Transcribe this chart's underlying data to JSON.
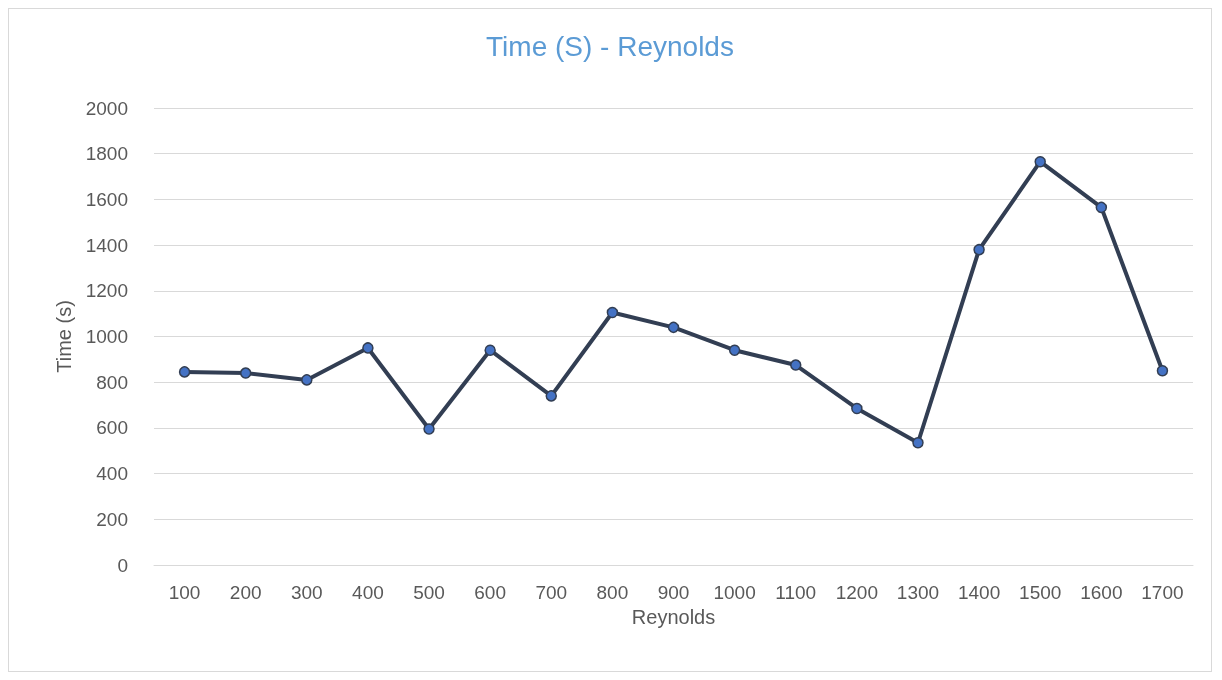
{
  "chart_data": {
    "type": "line",
    "title": "Time (S) - Reynolds",
    "xlabel": "Reynolds",
    "ylabel": "Time (s)",
    "categories": [
      "100",
      "200",
      "300",
      "400",
      "500",
      "600",
      "700",
      "800",
      "900",
      "1000",
      "1100",
      "1200",
      "1300",
      "1400",
      "1500",
      "1600",
      "1700"
    ],
    "series": [
      {
        "color": "#323e53",
        "colors": [
          "#4472c4",
          "#4472c4",
          "#4472c4",
          "#4472c4",
          "#4472c4",
          "#4472c4",
          "#4472c4",
          "#4472c4",
          "#4472c4",
          "#4472c4",
          "#4472c4",
          "#4472c4",
          "#4472c4",
          "#4472c4",
          "#4472c4",
          "#4472c4",
          "#4472c4"
        ],
        "values": [
          845,
          840,
          810,
          950,
          595,
          940,
          740,
          1105,
          1040,
          940,
          875,
          685,
          535,
          1380,
          1765,
          1565,
          850
        ]
      }
    ],
    "ylim": [
      0,
      2000
    ],
    "yticks": [
      0,
      200,
      400,
      600,
      800,
      1000,
      1200,
      1400,
      1600,
      1800,
      2000
    ],
    "grid": "y",
    "marker": "circle",
    "line_style": "solid"
  }
}
